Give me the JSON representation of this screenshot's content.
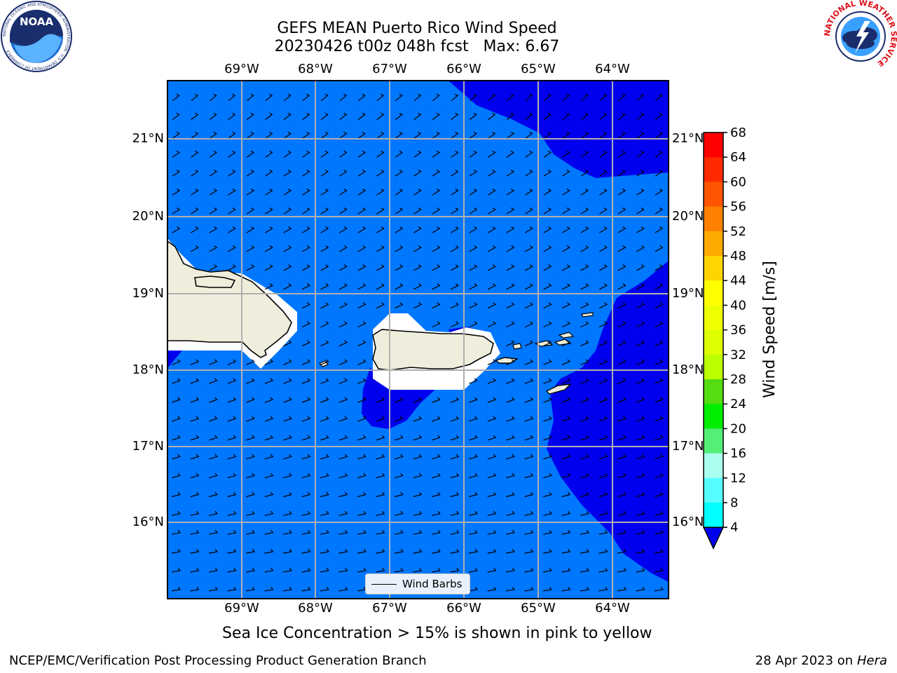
{
  "header": {
    "title_line1": "GEFS MEAN Puerto Rico Wind Speed",
    "title_line2": "20230426 t00z 048h fcst   Max: 6.67",
    "left_logo_text": "NOAA",
    "left_logo_ring": "NATIONAL OCEANIC AND ATMOSPHERIC ADMINISTRATION · U.S. DEPARTMENT OF COMMERCE",
    "right_logo_ring": "NATIONAL WEATHER SERVICE"
  },
  "map": {
    "lon_labels": [
      "69°W",
      "68°W",
      "67°W",
      "66°W",
      "65°W",
      "64°W"
    ],
    "lat_labels": [
      "21°N",
      "20°N",
      "19°N",
      "18°N",
      "17°N",
      "16°N"
    ],
    "ocean_color": "#0077ff",
    "calm_color": "#0000ee",
    "land_color": "#efeedc",
    "legend_label": "Wind Barbs"
  },
  "colorbar": {
    "label": "Wind Speed [m/s]",
    "ticks": [
      "68",
      "64",
      "60",
      "56",
      "52",
      "48",
      "44",
      "40",
      "36",
      "32",
      "28",
      "24",
      "20",
      "16",
      "12",
      "8",
      "4"
    ],
    "colors": [
      "#ff0000",
      "#ff2a00",
      "#ff5500",
      "#ff8000",
      "#ffaa00",
      "#ffd400",
      "#ffff00",
      "#eeff00",
      "#ddff00",
      "#bbff00",
      "#55dd11",
      "#00ee00",
      "#55ee77",
      "#aaffee",
      "#55ffff",
      "#00ffff",
      "#0077ff"
    ],
    "under_color": "#0000ee"
  },
  "notes": {
    "sea_ice": "Sea Ice Concentration > 15% is shown in pink to yellow"
  },
  "footer": {
    "left": "NCEP/EMC/Verification Post Processing Product Generation Branch",
    "date": "28 Apr 2023 on ",
    "machine": "Hera"
  }
}
